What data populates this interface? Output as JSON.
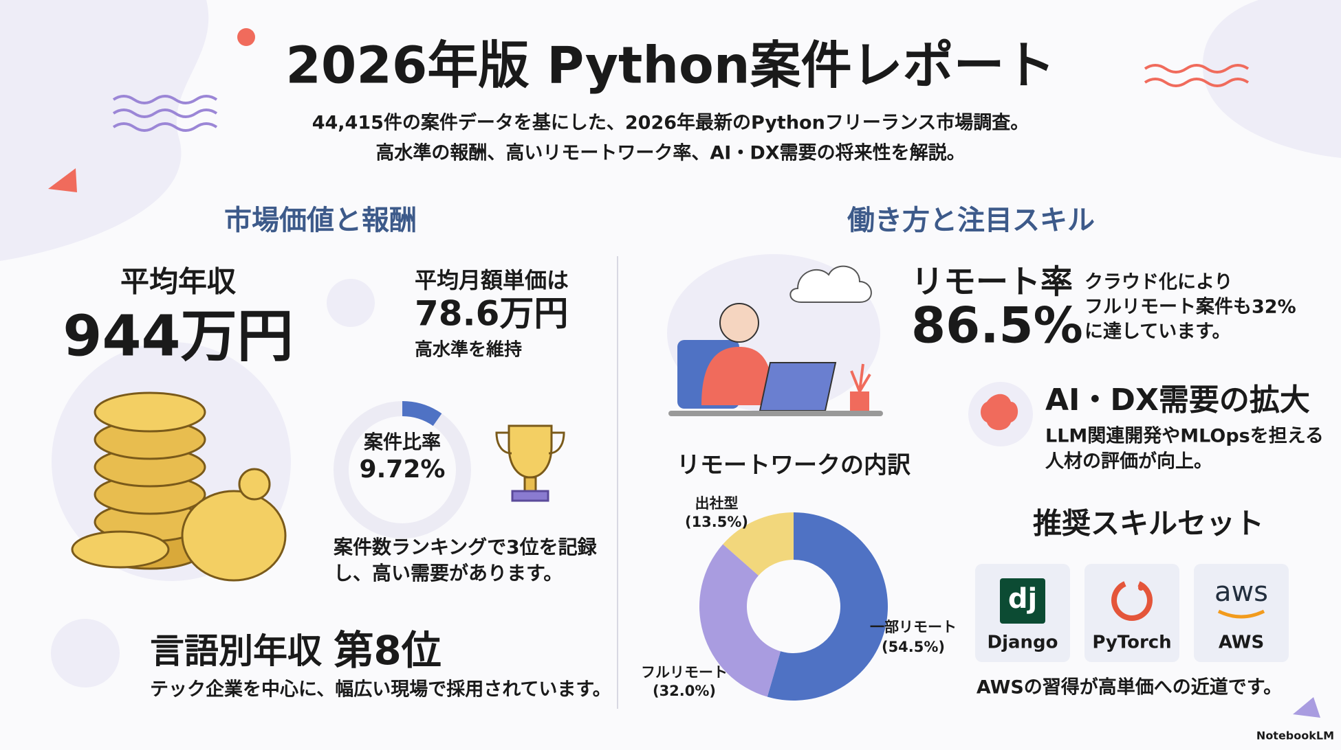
{
  "header": {
    "title": "2026年版 Python案件レポート",
    "subtitle_lines": [
      "44,415件の案件データを基にした、2026年最新のPythonフリーランス市場調査。",
      "高水準の報酬、高いリモートワーク率、AI・DX需要の将来性を解説。"
    ]
  },
  "left": {
    "heading": "市場価値と報酬",
    "annual_income": {
      "label": "平均年収",
      "value": "944万円"
    },
    "monthly": {
      "label": "平均月額単価は",
      "value": "78.6万円",
      "note": "高水準を維持"
    },
    "share": {
      "label": "案件比率",
      "value": 9.72,
      "value_label": "9.72%",
      "note_lines": [
        "案件数ランキングで3位を記録",
        "し、高い需要があります。"
      ]
    },
    "rank": {
      "title": "言語別年収 ",
      "emphasis": "第8位",
      "note": "テック企業を中心に、幅広い現場で採用されています。"
    }
  },
  "right": {
    "heading": "働き方と注目スキル",
    "remote_rate": {
      "label": "リモート率",
      "value": "86.5%",
      "note_lines": [
        "クラウド化により",
        "フルリモート案件も32%",
        "に達しています。"
      ]
    },
    "ai_dx": {
      "title": "AI・DX需要の拡大",
      "lines": [
        "LLM関連開発やMLOpsを担える",
        "人材の評価が向上。"
      ]
    },
    "remote_breakdown": {
      "title": "リモートワークの内訳",
      "segments": [
        {
          "name": "一部リモート",
          "value": 54.5,
          "value_label": "(54.5%)",
          "color": "#4f72c4"
        },
        {
          "name": "フルリモート",
          "value": 32.0,
          "value_label": "(32.0%)",
          "color": "#a99ce0"
        },
        {
          "name": "出社型",
          "value": 13.5,
          "value_label": "(13.5%)",
          "color": "#f2d77c"
        }
      ]
    },
    "skills": {
      "title": "推奨スキルセット",
      "items": [
        {
          "logo": "dj",
          "name": "Django"
        },
        {
          "logo": "",
          "name": "PyTorch"
        },
        {
          "logo": "aws",
          "name": "AWS"
        }
      ],
      "note": "AWSの習得が高単価への近道です。"
    }
  },
  "footer": {
    "brand": "NotebookLM"
  }
}
